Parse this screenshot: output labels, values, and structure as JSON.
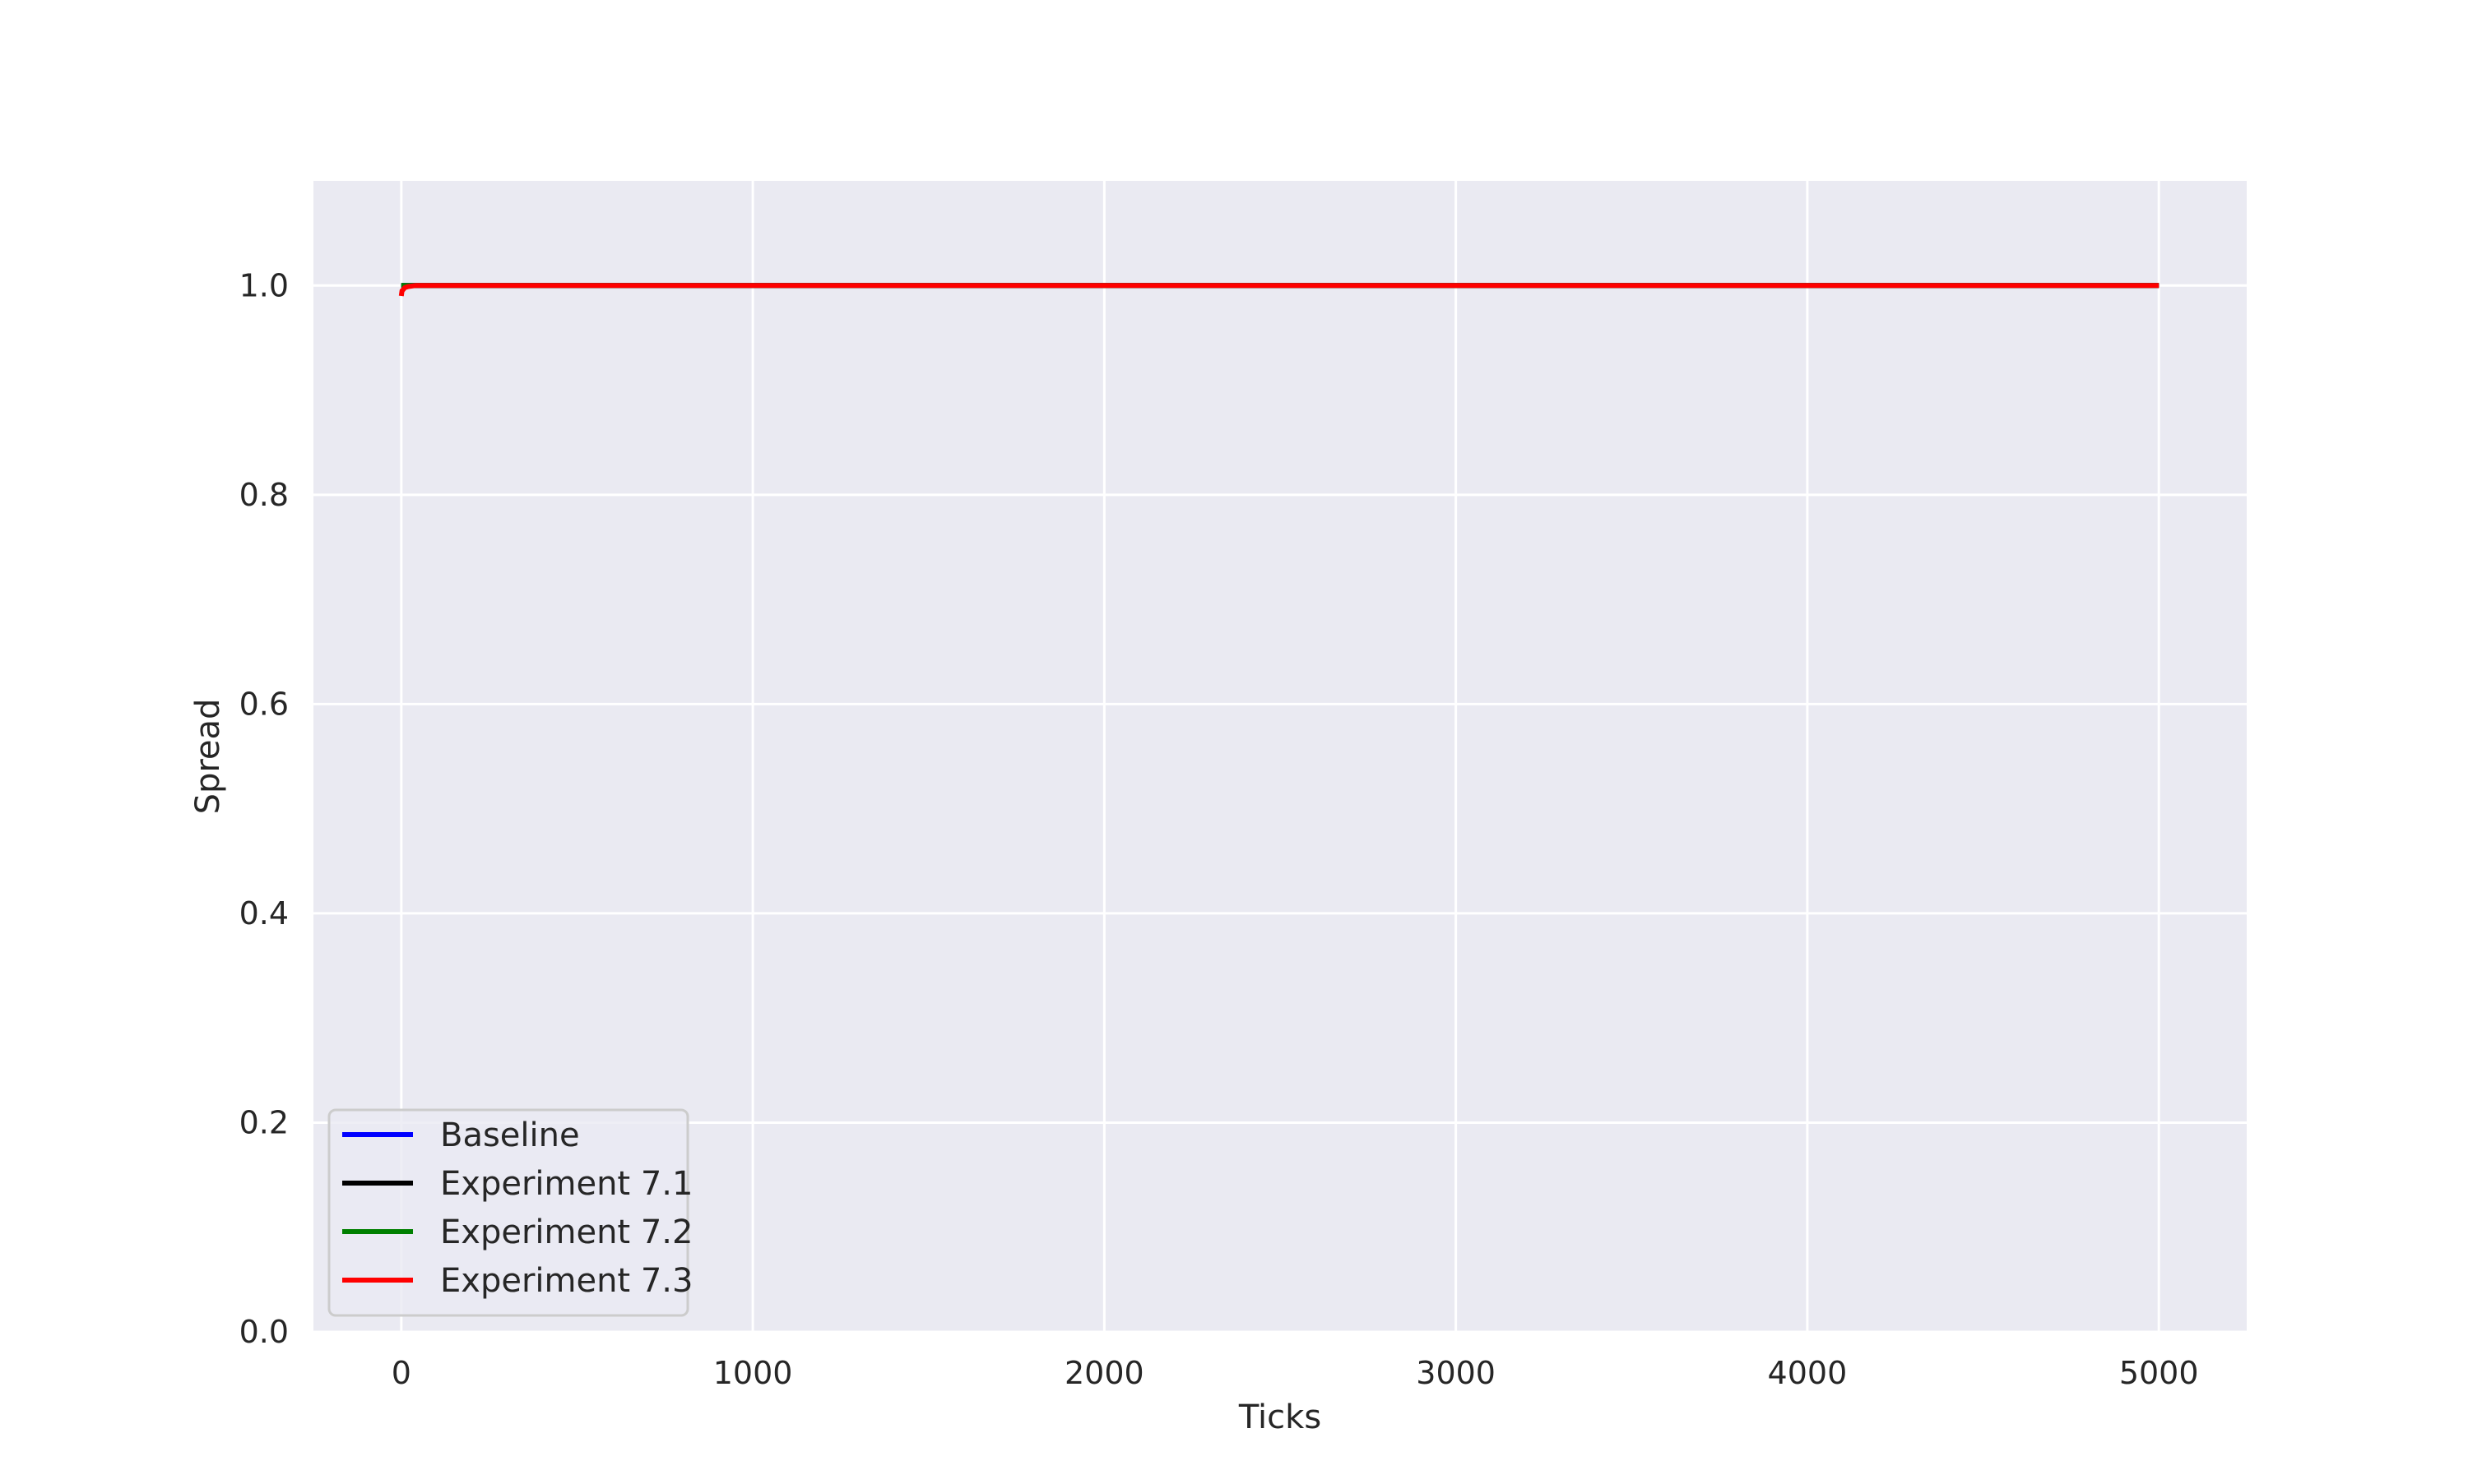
{
  "chart_data": {
    "type": "line",
    "title": "",
    "xlabel": "Ticks",
    "ylabel": "Spread",
    "xlim": [
      -250,
      5250
    ],
    "ylim": [
      0.0,
      1.1
    ],
    "xticks": [
      0,
      1000,
      2000,
      3000,
      4000,
      5000
    ],
    "xtick_labels": [
      "0",
      "1000",
      "2000",
      "3000",
      "4000",
      "5000"
    ],
    "yticks": [
      0.0,
      0.2,
      0.4,
      0.6,
      0.8,
      1.0
    ],
    "ytick_labels": [
      "0.0",
      "0.2",
      "0.4",
      "0.6",
      "0.8",
      "1.0"
    ],
    "grid": true,
    "legend_position": "lower-left",
    "background_color": "#eaeaf2",
    "grid_color": "#ffffff",
    "series": [
      {
        "name": "Baseline",
        "color": "#0000ff",
        "x": [
          0,
          5000
        ],
        "y": [
          1.0,
          1.0
        ]
      },
      {
        "name": "Experiment 7.1",
        "color": "#000000",
        "x": [
          0,
          5000
        ],
        "y": [
          1.0,
          1.0
        ]
      },
      {
        "name": "Experiment 7.2",
        "color": "#008000",
        "x": [
          0,
          5000
        ],
        "y": [
          1.0,
          1.0
        ]
      },
      {
        "name": "Experiment 7.3",
        "color": "#ff0000",
        "x": [
          0,
          2,
          5,
          10,
          20,
          40,
          5000
        ],
        "y": [
          0.99,
          0.995,
          0.996,
          0.998,
          0.999,
          1.0,
          1.0
        ]
      }
    ]
  }
}
